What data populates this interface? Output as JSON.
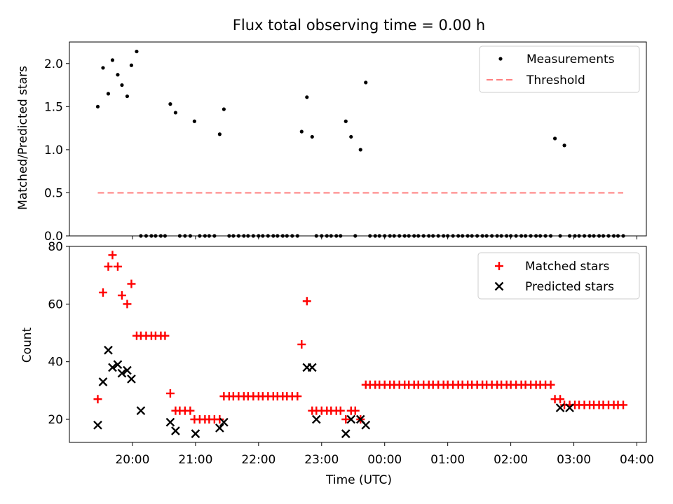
{
  "chart_data": [
    {
      "type": "scatter",
      "title": "Flux total observing time = 0.00 h",
      "xlabel": "",
      "ylabel": "Matched/Predicted stars",
      "ylim": [
        0,
        2.25
      ],
      "yticks": [
        "0.0",
        "0.5",
        "1.0",
        "1.5",
        "2.0"
      ],
      "ytick_values": [
        0,
        0.5,
        1.0,
        1.5,
        2.0
      ],
      "legend": {
        "placement": "top-right",
        "entries": [
          "Measurements",
          "Threshold"
        ]
      },
      "series": [
        {
          "name": "Measurements",
          "marker": "dot",
          "color": "#000000",
          "x": [
            "19:27",
            "19:32",
            "19:37",
            "19:41",
            "19:46",
            "19:50",
            "19:55",
            "19:59",
            "20:04",
            "20:08",
            "20:13",
            "20:18",
            "20:22",
            "20:27",
            "20:31",
            "20:36",
            "20:41",
            "20:45",
            "20:50",
            "20:55",
            "20:59",
            "21:04",
            "21:09",
            "21:13",
            "21:18",
            "21:23",
            "21:27",
            "21:32",
            "21:36",
            "21:41",
            "21:46",
            "21:50",
            "21:55",
            "22:00",
            "22:04",
            "22:09",
            "22:14",
            "22:18",
            "22:23",
            "22:27",
            "22:32",
            "22:37",
            "22:41",
            "22:46",
            "22:51",
            "22:55",
            "23:00",
            "23:05",
            "23:09",
            "23:14",
            "23:18",
            "23:23",
            "23:28",
            "23:32",
            "23:37",
            "23:42",
            "23:46",
            "23:51",
            "23:55",
            "00:00",
            "00:05",
            "00:09",
            "00:14",
            "00:19",
            "00:23",
            "00:28",
            "00:32",
            "00:37",
            "00:42",
            "00:46",
            "00:51",
            "00:56",
            "01:00",
            "01:05",
            "01:10",
            "01:14",
            "01:19",
            "01:23",
            "01:28",
            "01:33",
            "01:37",
            "01:42",
            "01:47",
            "01:51",
            "01:56",
            "02:00",
            "02:05",
            "02:10",
            "02:14",
            "02:19",
            "02:24",
            "02:28",
            "02:33",
            "02:38",
            "02:42",
            "02:47",
            "02:51",
            "02:56",
            "03:01",
            "03:05",
            "03:10",
            "03:15",
            "03:19",
            "03:24",
            "03:28",
            "03:33",
            "03:38",
            "03:42",
            "03:47"
          ],
          "values": [
            1.5,
            1.95,
            1.65,
            2.04,
            1.87,
            1.75,
            1.62,
            1.98,
            2.14,
            0,
            0,
            0,
            0,
            0,
            0,
            1.53,
            1.43,
            0,
            0,
            0,
            1.33,
            0,
            0,
            0,
            0,
            1.18,
            1.47,
            0,
            0,
            0,
            0,
            0,
            0,
            0,
            0,
            0,
            0,
            0,
            0,
            0,
            0,
            0,
            1.21,
            1.61,
            1.15,
            0,
            0,
            0,
            0,
            0,
            0,
            1.33,
            1.15,
            0,
            1.0,
            1.78,
            0,
            0,
            0,
            0,
            0,
            0,
            0,
            0,
            0,
            0,
            0,
            0,
            0,
            0,
            0,
            0,
            0,
            0,
            0,
            0,
            0,
            0,
            0,
            0,
            0,
            0,
            0,
            0,
            0,
            0,
            0,
            0,
            0,
            0,
            0,
            0,
            0,
            0,
            1.13,
            0,
            1.05,
            0,
            0,
            0,
            0,
            0,
            0,
            0,
            0,
            0,
            0,
            0,
            0
          ]
        },
        {
          "name": "Threshold",
          "type": "line",
          "style": "dashed",
          "color": "#ff7f7f",
          "x": [
            "19:27",
            "03:47"
          ],
          "values": [
            0.5,
            0.5
          ]
        }
      ]
    },
    {
      "type": "scatter",
      "title": "",
      "xlabel": "Time (UTC)",
      "ylabel": "Count",
      "ylim": [
        12,
        80
      ],
      "yticks": [
        "20",
        "40",
        "60",
        "80"
      ],
      "ytick_values": [
        20,
        40,
        60,
        80
      ],
      "xticks": [
        "20:00",
        "21:00",
        "22:00",
        "23:00",
        "00:00",
        "01:00",
        "02:00",
        "03:00",
        "04:00"
      ],
      "legend": {
        "placement": "top-right",
        "entries": [
          "Matched stars",
          "Predicted stars"
        ]
      },
      "series": [
        {
          "name": "Matched stars",
          "marker": "plus",
          "color": "#ff0000",
          "x": [
            "19:27",
            "19:32",
            "19:37",
            "19:41",
            "19:46",
            "19:50",
            "19:55",
            "19:59",
            "20:04",
            "20:08",
            "20:13",
            "20:18",
            "20:22",
            "20:27",
            "20:31",
            "20:36",
            "20:41",
            "20:45",
            "20:50",
            "20:55",
            "20:59",
            "21:04",
            "21:09",
            "21:13",
            "21:18",
            "21:23",
            "21:27",
            "21:32",
            "21:36",
            "21:41",
            "21:46",
            "21:50",
            "21:55",
            "22:00",
            "22:04",
            "22:09",
            "22:14",
            "22:18",
            "22:23",
            "22:27",
            "22:32",
            "22:37",
            "22:41",
            "22:46",
            "22:51",
            "22:55",
            "23:00",
            "23:05",
            "23:09",
            "23:14",
            "23:18",
            "23:23",
            "23:28",
            "23:32",
            "23:37",
            "23:42",
            "23:46",
            "23:51",
            "23:55",
            "00:00",
            "00:05",
            "00:09",
            "00:14",
            "00:19",
            "00:23",
            "00:28",
            "00:32",
            "00:37",
            "00:42",
            "00:46",
            "00:51",
            "00:56",
            "01:00",
            "01:05",
            "01:10",
            "01:14",
            "01:19",
            "01:23",
            "01:28",
            "01:33",
            "01:37",
            "01:42",
            "01:47",
            "01:51",
            "01:56",
            "02:00",
            "02:05",
            "02:10",
            "02:14",
            "02:19",
            "02:24",
            "02:28",
            "02:33",
            "02:38",
            "02:42",
            "02:47",
            "02:51",
            "02:56",
            "03:01",
            "03:05",
            "03:10",
            "03:15",
            "03:19",
            "03:24",
            "03:28",
            "03:33",
            "03:38",
            "03:42",
            "03:47"
          ],
          "values": [
            27,
            64,
            73,
            77,
            73,
            63,
            60,
            67,
            49,
            49,
            49,
            49,
            49,
            49,
            49,
            29,
            23,
            23,
            23,
            23,
            20,
            20,
            20,
            20,
            20,
            20,
            28,
            28,
            28,
            28,
            28,
            28,
            28,
            28,
            28,
            28,
            28,
            28,
            28,
            28,
            28,
            28,
            46,
            61,
            23,
            23,
            23,
            23,
            23,
            23,
            23,
            20,
            23,
            23,
            20,
            32,
            32,
            32,
            32,
            32,
            32,
            32,
            32,
            32,
            32,
            32,
            32,
            32,
            32,
            32,
            32,
            32,
            32,
            32,
            32,
            32,
            32,
            32,
            32,
            32,
            32,
            32,
            32,
            32,
            32,
            32,
            32,
            32,
            32,
            32,
            32,
            32,
            32,
            32,
            27,
            27,
            25,
            25,
            25,
            25,
            25,
            25,
            25,
            25,
            25,
            25,
            25,
            25,
            25
          ]
        },
        {
          "name": "Predicted stars",
          "marker": "x",
          "color": "#000000",
          "x": [
            "19:27",
            "19:32",
            "19:37",
            "19:41",
            "19:46",
            "19:50",
            "19:55",
            "19:59",
            "20:08",
            "20:36",
            "20:41",
            "21:00",
            "21:23",
            "21:27",
            "22:46",
            "22:51",
            "22:55",
            "23:23",
            "23:28",
            "23:37",
            "23:42",
            "02:47",
            "02:56"
          ],
          "values": [
            18,
            33,
            44,
            38,
            39,
            36,
            37,
            34,
            23,
            19,
            16,
            15,
            17,
            19,
            38,
            38,
            20,
            15,
            20,
            20,
            18,
            24,
            24
          ]
        }
      ]
    }
  ]
}
